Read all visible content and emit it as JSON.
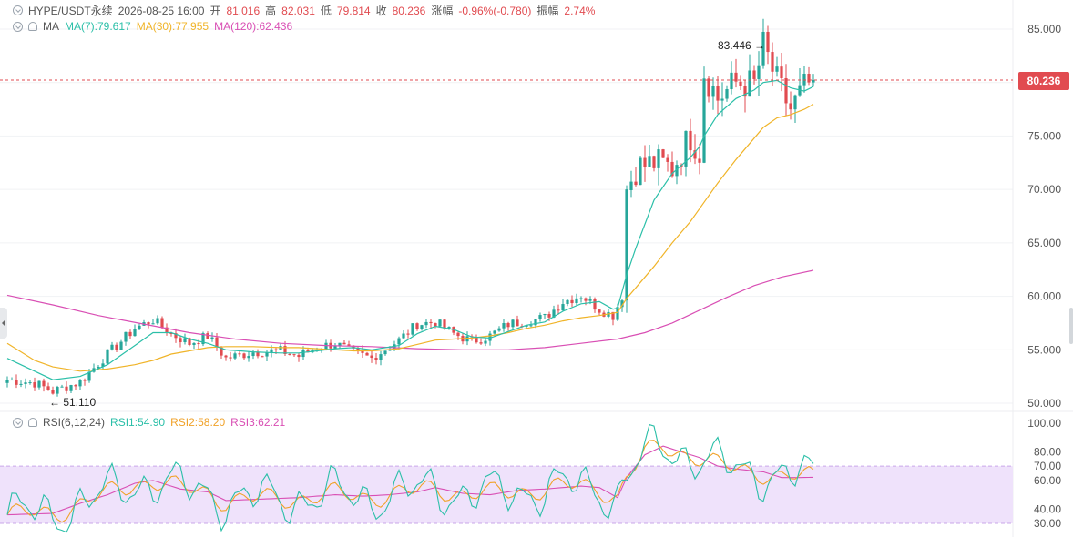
{
  "header": {
    "symbol": "HYPE/USDT永续",
    "datetime": "2026-08-25 16:00",
    "open_label": "开",
    "open_value": "81.016",
    "high_label": "高",
    "high_value": "82.031",
    "low_label": "低",
    "low_value": "79.814",
    "close_label": "收",
    "close_value": "80.236",
    "change_label": "涨幅",
    "change_value": "-0.96%(-0.780)",
    "amp_label": "振幅",
    "amp_value": "2.74%"
  },
  "ma_legend": {
    "label": "MA",
    "ma7": "MA(7):79.617",
    "ma30": "MA(30):77.955",
    "ma120": "MA(120):62.436"
  },
  "rsi_legend": {
    "label": "RSI(6,12,24)",
    "rsi1": "RSI1:54.90",
    "rsi2": "RSI2:58.20",
    "rsi3": "RSI3:62.21"
  },
  "current_price_tag": "80.236",
  "annotations": {
    "high_label": "83.446",
    "low_label": "51.110"
  },
  "colors": {
    "up": "#26a69a",
    "down": "#e14b50",
    "ma7": "#2bbfa8",
    "ma30": "#f0b429",
    "ma120": "#d94fb4",
    "rsi_band": "#efe2fb"
  },
  "chart_data": [
    {
      "type": "candlestick",
      "title": "",
      "price_axis": {
        "ticks": [
          85,
          80,
          75,
          70,
          65,
          60,
          55,
          50
        ],
        "tick_labels": [
          "85.000",
          "80.000",
          "75.000",
          "70.000",
          "65.000",
          "60.000",
          "55.000",
          "50.000"
        ],
        "ylim": [
          49.5,
          87
        ]
      },
      "key_points": [
        [
          0,
          52.2
        ],
        [
          6,
          51.9
        ],
        [
          10,
          51.1
        ],
        [
          16,
          52.0
        ],
        [
          22,
          54.6
        ],
        [
          28,
          57.0
        ],
        [
          32,
          57.8
        ],
        [
          36,
          56.5
        ],
        [
          40,
          55.6
        ],
        [
          44,
          56.3
        ],
        [
          48,
          54.2
        ],
        [
          54,
          54.8
        ],
        [
          60,
          54.9
        ],
        [
          64,
          54.4
        ],
        [
          68,
          55.2
        ],
        [
          72,
          55.6
        ],
        [
          76,
          54.7
        ],
        [
          80,
          54.2
        ],
        [
          86,
          55.9
        ],
        [
          90,
          57.4
        ],
        [
          94,
          57.6
        ],
        [
          98,
          56.5
        ],
        [
          102,
          55.8
        ],
        [
          106,
          56.3
        ],
        [
          110,
          57.4
        ],
        [
          114,
          57.7
        ],
        [
          118,
          58.0
        ],
        [
          122,
          59.5
        ],
        [
          126,
          60.1
        ],
        [
          130,
          58.8
        ],
        [
          133,
          58.2
        ],
        [
          135,
          60.0
        ],
        [
          136,
          70.0
        ],
        [
          138,
          72.0
        ],
        [
          142,
          72.5
        ],
        [
          146,
          72.0
        ],
        [
          150,
          75.0
        ],
        [
          152,
          73.5
        ],
        [
          153,
          81.0
        ],
        [
          156,
          78.5
        ],
        [
          160,
          80.0
        ],
        [
          164,
          79.8
        ],
        [
          166,
          83.446
        ],
        [
          169,
          80.0
        ],
        [
          172,
          77.5
        ],
        [
          175,
          79.5
        ],
        [
          177,
          80.236
        ]
      ],
      "ma": {
        "ma7": [
          [
            0,
            54.2
          ],
          [
            6,
            53.0
          ],
          [
            10,
            52.2
          ],
          [
            16,
            52.5
          ],
          [
            22,
            53.6
          ],
          [
            28,
            55.4
          ],
          [
            32,
            56.6
          ],
          [
            36,
            56.6
          ],
          [
            40,
            56.0
          ],
          [
            44,
            55.6
          ],
          [
            48,
            55.0
          ],
          [
            54,
            54.8
          ],
          [
            60,
            54.7
          ],
          [
            64,
            54.7
          ],
          [
            68,
            54.9
          ],
          [
            72,
            55.1
          ],
          [
            76,
            55.2
          ],
          [
            80,
            55.0
          ],
          [
            86,
            55.4
          ],
          [
            90,
            56.5
          ],
          [
            94,
            57.2
          ],
          [
            98,
            56.9
          ],
          [
            102,
            56.2
          ],
          [
            106,
            56.1
          ],
          [
            110,
            56.7
          ],
          [
            114,
            57.3
          ],
          [
            118,
            57.6
          ],
          [
            122,
            58.6
          ],
          [
            126,
            59.3
          ],
          [
            130,
            59.5
          ],
          [
            133,
            58.8
          ],
          [
            134,
            58.9
          ],
          [
            136,
            62.0
          ],
          [
            138,
            64.5
          ],
          [
            142,
            69.0
          ],
          [
            146,
            71.5
          ],
          [
            150,
            73.0
          ],
          [
            152,
            74.0
          ],
          [
            153,
            75.0
          ],
          [
            156,
            77.0
          ],
          [
            160,
            78.5
          ],
          [
            164,
            79.3
          ],
          [
            166,
            80.0
          ],
          [
            169,
            80.2
          ],
          [
            172,
            79.5
          ],
          [
            175,
            79.2
          ],
          [
            177,
            79.617
          ]
        ],
        "ma30": [
          [
            0,
            55.6
          ],
          [
            6,
            54.0
          ],
          [
            10,
            53.4
          ],
          [
            16,
            53.0
          ],
          [
            22,
            53.2
          ],
          [
            28,
            53.6
          ],
          [
            32,
            54.0
          ],
          [
            36,
            54.6
          ],
          [
            40,
            54.9
          ],
          [
            44,
            55.2
          ],
          [
            48,
            55.3
          ],
          [
            54,
            55.3
          ],
          [
            60,
            55.2
          ],
          [
            64,
            55.2
          ],
          [
            68,
            55.1
          ],
          [
            72,
            55.0
          ],
          [
            76,
            54.9
          ],
          [
            80,
            54.9
          ],
          [
            86,
            55.1
          ],
          [
            90,
            55.5
          ],
          [
            94,
            55.9
          ],
          [
            98,
            56.0
          ],
          [
            102,
            56.1
          ],
          [
            106,
            56.3
          ],
          [
            110,
            56.6
          ],
          [
            114,
            57.0
          ],
          [
            118,
            57.3
          ],
          [
            122,
            57.7
          ],
          [
            126,
            58.0
          ],
          [
            130,
            58.2
          ],
          [
            134,
            58.5
          ],
          [
            136,
            59.8
          ],
          [
            138,
            60.8
          ],
          [
            142,
            62.8
          ],
          [
            146,
            65.0
          ],
          [
            150,
            67.0
          ],
          [
            153,
            68.8
          ],
          [
            156,
            70.6
          ],
          [
            160,
            72.8
          ],
          [
            164,
            74.8
          ],
          [
            166,
            75.8
          ],
          [
            169,
            76.7
          ],
          [
            172,
            77.0
          ],
          [
            175,
            77.5
          ],
          [
            177,
            77.955
          ]
        ],
        "ma120": [
          [
            0,
            60.1
          ],
          [
            10,
            59.2
          ],
          [
            20,
            58.2
          ],
          [
            30,
            57.4
          ],
          [
            40,
            56.6
          ],
          [
            50,
            56.0
          ],
          [
            60,
            55.6
          ],
          [
            70,
            55.4
          ],
          [
            80,
            55.3
          ],
          [
            90,
            55.1
          ],
          [
            100,
            55.0
          ],
          [
            110,
            55.0
          ],
          [
            118,
            55.2
          ],
          [
            126,
            55.6
          ],
          [
            134,
            56.0
          ],
          [
            140,
            56.6
          ],
          [
            146,
            57.5
          ],
          [
            152,
            58.7
          ],
          [
            158,
            59.9
          ],
          [
            164,
            61.0
          ],
          [
            170,
            61.8
          ],
          [
            177,
            62.436
          ]
        ]
      }
    },
    {
      "type": "line",
      "title": "",
      "rsi_axis": {
        "ticks": [
          100,
          80,
          70,
          60,
          40,
          30
        ],
        "tick_labels": [
          "100.00",
          "80.00",
          "70.00",
          "60.00",
          "40.00",
          "30.00"
        ],
        "band": [
          30,
          70
        ]
      },
      "rsi3": [
        [
          0,
          36
        ],
        [
          10,
          37
        ],
        [
          16,
          44
        ],
        [
          22,
          50
        ],
        [
          28,
          58
        ],
        [
          32,
          60
        ],
        [
          38,
          54
        ],
        [
          44,
          52
        ],
        [
          48,
          46
        ],
        [
          56,
          47
        ],
        [
          64,
          48
        ],
        [
          72,
          50
        ],
        [
          78,
          49
        ],
        [
          84,
          50
        ],
        [
          90,
          52
        ],
        [
          94,
          55
        ],
        [
          100,
          51
        ],
        [
          106,
          50
        ],
        [
          112,
          53
        ],
        [
          118,
          54
        ],
        [
          126,
          56
        ],
        [
          130,
          55
        ],
        [
          134,
          48
        ],
        [
          136,
          62
        ],
        [
          140,
          78
        ],
        [
          144,
          84
        ],
        [
          148,
          80
        ],
        [
          152,
          76
        ],
        [
          156,
          70
        ],
        [
          160,
          68
        ],
        [
          166,
          66
        ],
        [
          170,
          62
        ],
        [
          174,
          62
        ],
        [
          177,
          62.21
        ]
      ]
    }
  ]
}
